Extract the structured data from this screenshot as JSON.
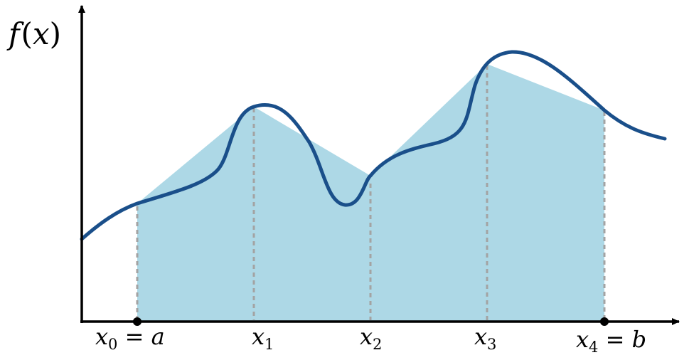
{
  "ylabel": {
    "f": "f",
    "lparen": "(",
    "x": "x",
    "rparen": ")"
  },
  "ticks": [
    {
      "base": "x",
      "sub": "0",
      "suffix": " = a"
    },
    {
      "base": "x",
      "sub": "1",
      "suffix": ""
    },
    {
      "base": "x",
      "sub": "2",
      "suffix": ""
    },
    {
      "base": "x",
      "sub": "3",
      "suffix": ""
    },
    {
      "base": "x",
      "sub": "4",
      "suffix": " = b"
    }
  ],
  "colors": {
    "curve": "#1a4f8a",
    "fill": "#add8e6",
    "dashed": "#a0a0a0",
    "axis": "#000000"
  }
}
